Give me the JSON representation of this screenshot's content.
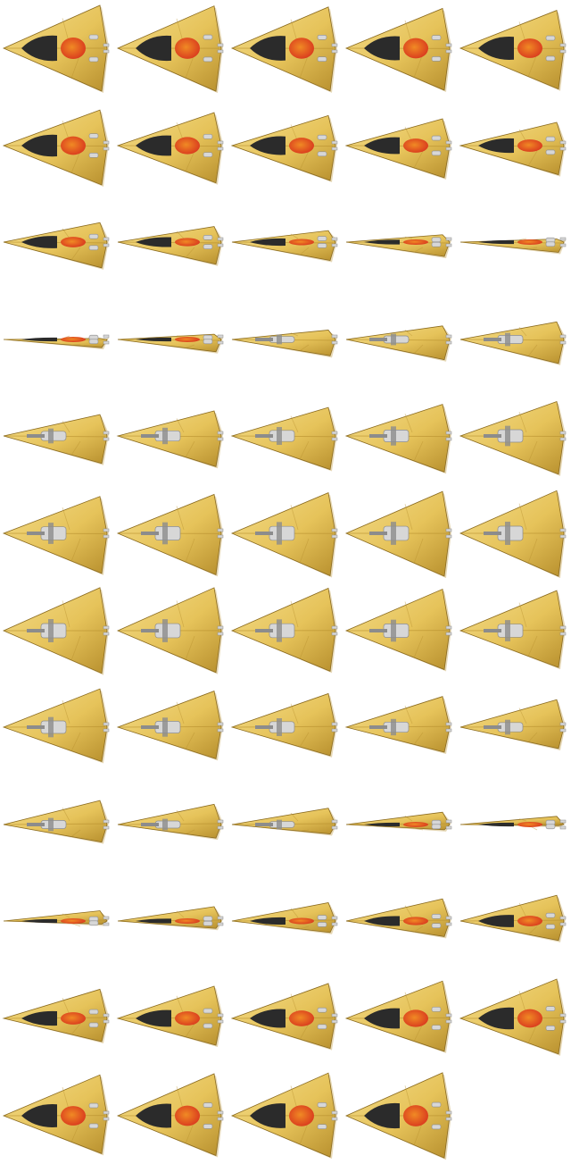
{
  "sprite_sheet": {
    "columns": 5,
    "rows": 12,
    "frame_count": 59,
    "colors": {
      "background": "#ffffff",
      "hull_light": "#f3dc8a",
      "hull_mid": "#e6c35a",
      "hull_dark": "#b8902e",
      "hull_edge": "#8a6a1f",
      "cockpit_dark": "#2b2b2b",
      "cockpit_mid": "#4a4a4a",
      "core_red": "#d9381e",
      "core_orange": "#f08a24",
      "metal_light": "#d7d7d7",
      "metal_dark": "#8c8c8c"
    }
  }
}
